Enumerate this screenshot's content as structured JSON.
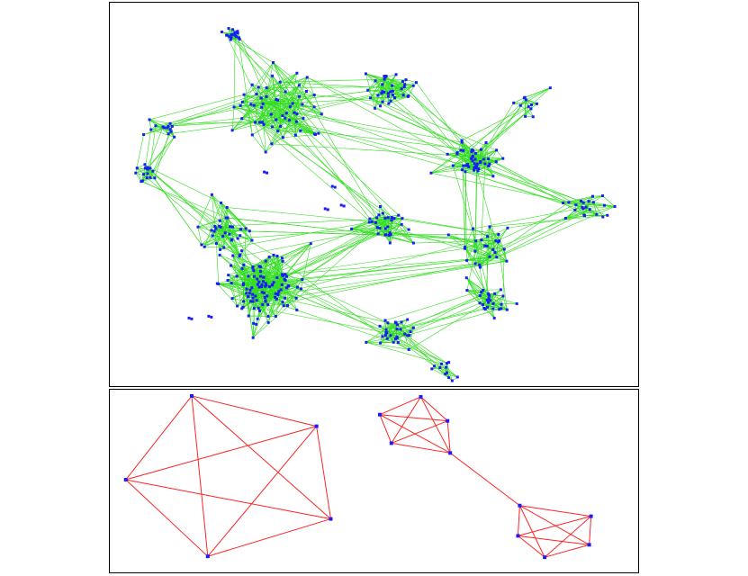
{
  "colors": {
    "node": "#1a1aff",
    "network_edge": "#33dd22",
    "clique_edge": "#ff2222",
    "border": "#000000",
    "background": "#ffffff"
  },
  "network": {
    "clusters": [
      {
        "id": "c-top-stem",
        "n": 18,
        "spread": 6
      },
      {
        "id": "c-upper-mid",
        "n": 60,
        "spread": 26
      },
      {
        "id": "c-upper-right",
        "n": 36,
        "spread": 14
      },
      {
        "id": "c-left-upper",
        "n": 14,
        "spread": 9
      },
      {
        "id": "c-left-lower",
        "n": 16,
        "spread": 9
      },
      {
        "id": "c-right-hub",
        "n": 46,
        "spread": 14
      },
      {
        "id": "c-far-right-top",
        "n": 12,
        "spread": 10
      },
      {
        "id": "c-far-right",
        "n": 22,
        "spread": 12
      },
      {
        "id": "c-center-mid",
        "n": 30,
        "spread": 14
      },
      {
        "id": "c-left-mid",
        "n": 34,
        "spread": 16
      },
      {
        "id": "c-big-lower-left",
        "n": 110,
        "spread": 24
      },
      {
        "id": "c-mid-right",
        "n": 26,
        "spread": 16
      },
      {
        "id": "c-right-lower",
        "n": 28,
        "spread": 12
      },
      {
        "id": "c-bottom",
        "n": 30,
        "spread": 12
      },
      {
        "id": "c-bottom-tail",
        "n": 12,
        "spread": 8
      }
    ]
  },
  "cliques": [
    {
      "id": "clique-large-pentagon",
      "nodes": 5
    },
    {
      "id": "clique-small-upper",
      "nodes": 5
    },
    {
      "id": "clique-small-lower",
      "nodes": 5
    }
  ]
}
